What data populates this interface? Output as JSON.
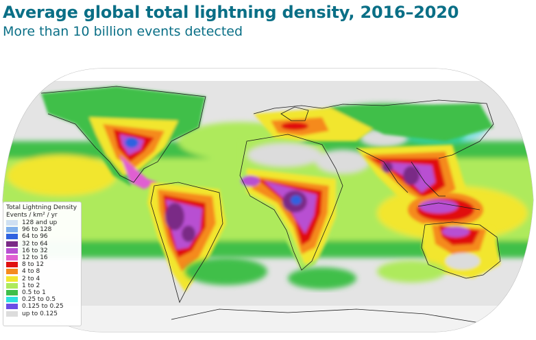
{
  "title": "Average global total lightning density, 2016–2020",
  "subtitle": "More than 10 billion events detected",
  "legend": {
    "title": "Total Lightning Density",
    "units": "Events / km² / yr",
    "items": [
      {
        "label": "128 and up",
        "color": "#cfe0f2"
      },
      {
        "label": "96 to 128",
        "color": "#7fb0ec"
      },
      {
        "label": "64 to 96",
        "color": "#2f62e0"
      },
      {
        "label": "32 to 64",
        "color": "#7a2a86"
      },
      {
        "label": "16 to 32",
        "color": "#b84fd2"
      },
      {
        "label": "12 to 16",
        "color": "#e05fd2"
      },
      {
        "label": "8 to 12",
        "color": "#e01010"
      },
      {
        "label": "4 to 8",
        "color": "#f58a1e"
      },
      {
        "label": "2 to 4",
        "color": "#f2e62e"
      },
      {
        "label": "1 to 2",
        "color": "#aeea5c"
      },
      {
        "label": "0.5 to 1",
        "color": "#3fbf4a"
      },
      {
        "label": "0.25 to 0.5",
        "color": "#2ee0e0"
      },
      {
        "label": "0.125 to 0.25",
        "color": "#6a4de6"
      },
      {
        "label": "up to 0.125",
        "color": "#dcdcdc"
      }
    ]
  },
  "map_colors": {
    "ocean_low": "#dcdcdc",
    "ocean_mid": "#3fbf4a",
    "tropics": "#aeea5c",
    "high": "#f2e62e",
    "higher": "#f58a1e",
    "hot": "#e01010",
    "peak": "#b84fd2",
    "extreme": "#7a2a86",
    "max": "#2f62e0"
  }
}
